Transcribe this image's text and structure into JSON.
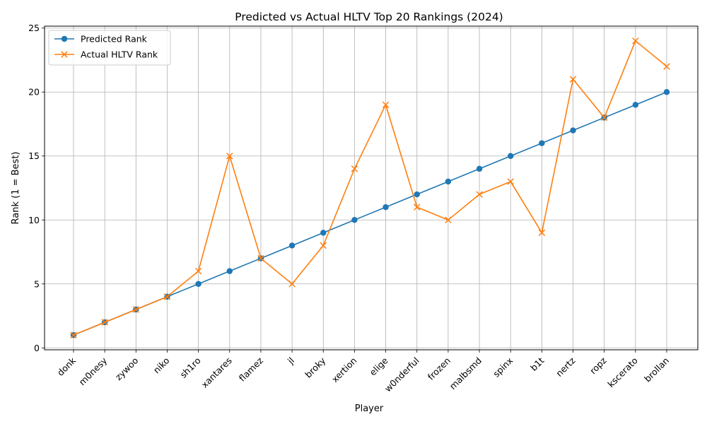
{
  "chart_data": {
    "type": "line",
    "title": "Predicted vs Actual HLTV Top 20 Rankings (2024)",
    "xlabel": "Player",
    "ylabel": "Rank (1 = Best)",
    "categories": [
      "donk",
      "m0nesy",
      "zywoo",
      "niko",
      "sh1ro",
      "xantares",
      "flamez",
      "jl",
      "broky",
      "xertion",
      "elige",
      "w0nderful",
      "frozen",
      "malbsmd",
      "spinx",
      "b1t",
      "nertz",
      "ropz",
      "kscerato",
      "brollan"
    ],
    "series": [
      {
        "name": "Predicted Rank",
        "values": [
          1,
          2,
          3,
          4,
          5,
          6,
          7,
          8,
          9,
          10,
          11,
          12,
          13,
          14,
          15,
          16,
          17,
          18,
          19,
          20
        ],
        "color": "#1f77b4",
        "marker": "circle"
      },
      {
        "name": "Actual HLTV Rank",
        "values": [
          1,
          2,
          3,
          4,
          6,
          15,
          7,
          5,
          8,
          14,
          19,
          11,
          10,
          12,
          13,
          9,
          21,
          18,
          24,
          22
        ],
        "color": "#ff7f0e",
        "marker": "x"
      }
    ],
    "ylim": [
      -0.15,
      25.15
    ],
    "yticks": [
      0,
      5,
      10,
      15,
      20,
      25
    ],
    "grid": true,
    "legend": "top-left"
  }
}
